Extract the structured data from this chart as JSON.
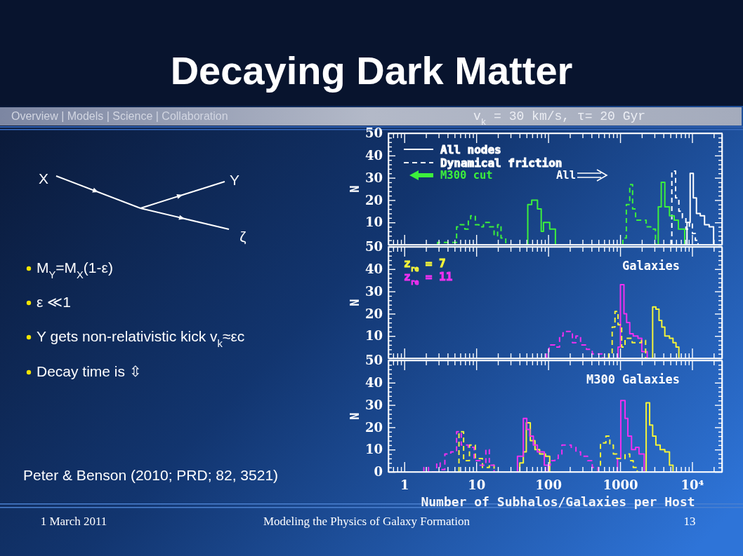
{
  "chart_data": [
    {
      "type": "other",
      "title": "Decaying Dark Matter",
      "annotations": [
        "Overview | Models | Science | Collaboration",
        "X",
        "Y",
        "ζ",
        "M$_{Y}$=M$_{X}$(1-ε)",
        "ε ≪1",
        "Y gets non-relativistic kick v$_{k}$≈εc",
        "Decay time is ⇳",
        "Peter & Benson (2010; PRD; 82, 3521)",
        "1 March 2011",
        "Modeling the Physics of Galaxy Formation",
        "13"
      ]
    },
    {
      "type": "step",
      "title": "v$_{k}$ = 30 km/s, τ= 20 Gyr",
      "ylabel": "N",
      "log": "x",
      "tick_labels": "y",
      "legend": "top left",
      "xlim": [
        0.6,
        26000
      ],
      "xticks": [
        {
          "value": 0.7,
          "label": null
        },
        {
          "value": 0.8,
          "label": null
        },
        {
          "value": 0.9,
          "label": null
        },
        1,
        {
          "value": 2,
          "label": null
        },
        {
          "value": 3,
          "label": null
        },
        {
          "value": 4,
          "label": null
        },
        {
          "value": 5,
          "label": null
        },
        {
          "value": 6,
          "label": null
        },
        {
          "value": 7,
          "label": null
        },
        {
          "value": 8,
          "label": null
        },
        {
          "value": 9,
          "label": null
        },
        10,
        {
          "value": 20,
          "label": null
        },
        {
          "value": 30,
          "label": null
        },
        {
          "value": 40,
          "label": null
        },
        {
          "value": 50,
          "label": null
        },
        {
          "value": 60,
          "label": null
        },
        {
          "value": 70,
          "label": null
        },
        {
          "value": 80,
          "label": null
        },
        {
          "value": 90,
          "label": null
        },
        100,
        {
          "value": 200,
          "label": null
        },
        {
          "value": 300,
          "label": null
        },
        {
          "value": 400,
          "label": null
        },
        {
          "value": 500,
          "label": null
        },
        {
          "value": 600,
          "label": null
        },
        {
          "value": 700,
          "label": null
        },
        {
          "value": 800,
          "label": null
        },
        {
          "value": 900,
          "label": null
        },
        1000,
        {
          "value": 2000,
          "label": null
        },
        {
          "value": 3000,
          "label": null
        },
        {
          "value": 4000,
          "label": null
        },
        {
          "value": 5000,
          "label": null
        },
        {
          "value": 6000,
          "label": null
        },
        {
          "value": 7000,
          "label": null
        },
        {
          "value": 8000,
          "label": null
        },
        {
          "value": 9000,
          "label": null
        },
        10000,
        {
          "value": 20000,
          "label": null
        }
      ],
      "ylim": [
        0,
        50
      ],
      "yticks": [
        {
          "value": 0,
          "label": null
        },
        {
          "value": 2,
          "label": null
        },
        {
          "value": 4,
          "label": null
        },
        {
          "value": 6,
          "label": null
        },
        {
          "value": 8,
          "label": null
        },
        10,
        {
          "value": 12,
          "label": null
        },
        {
          "value": 14,
          "label": null
        },
        {
          "value": 16,
          "label": null
        },
        {
          "value": 18,
          "label": null
        },
        20,
        {
          "value": 22,
          "label": null
        },
        {
          "value": 24,
          "label": null
        },
        {
          "value": 26,
          "label": null
        },
        {
          "value": 28,
          "label": null
        },
        30,
        {
          "value": 32,
          "label": null
        },
        {
          "value": 34,
          "label": null
        },
        {
          "value": 36,
          "label": null
        },
        {
          "value": 38,
          "label": null
        },
        40,
        {
          "value": 42,
          "label": null
        },
        {
          "value": 44,
          "label": null
        },
        {
          "value": 46,
          "label": null
        },
        {
          "value": 48,
          "label": null
        },
        50
      ],
      "annotations": [
        "M300 cut",
        "All"
      ],
      "series": [
        {
          "name": "All nodes",
          "color": "#ffffff",
          "line_style": "solid",
          "x": [
            8500,
            8500,
            9400,
            10400,
            11500,
            13000,
            14900,
            17300,
            19900
          ],
          "values": [
            0,
            10,
            32,
            21,
            14,
            13,
            9,
            8,
            0
          ]
        },
        {
          "name": "Dynamical friction",
          "color": "#ffffff",
          "line_style": "dashed",
          "x": [
            5230,
            5230,
            5900,
            6550,
            7330,
            8200,
            9180,
            10100,
            11100,
            12100
          ],
          "values": [
            0,
            33,
            21,
            15,
            12,
            7,
            10,
            5,
            2,
            0
          ]
        },
        {
          "color": "#3cf03c",
          "line_style": "solid",
          "x": [
            52,
            52,
            59,
            71,
            80,
            86,
            105,
            126
          ],
          "values": [
            0,
            18,
            20,
            16,
            6,
            10,
            7,
            0
          ]
        },
        {
          "color": "#3cf03c",
          "line_style": "solid",
          "x": [
            3390,
            3390,
            3730,
            4180,
            4850,
            5640,
            6450,
            7900
          ],
          "values": [
            0,
            17,
            28,
            17,
            13,
            11,
            7,
            0
          ]
        },
        {
          "color": "#3cf03c",
          "line_style": "dashed",
          "x": [
            2.9,
            2.9,
            3.9,
            5.33,
            5.97,
            6.93,
            7.76,
            8.36,
            9.71,
            10.9,
            12.6,
            15.2,
            17.7,
            19.8,
            22.1,
            25.7
          ],
          "values": [
            0,
            1,
            1,
            8,
            9,
            7,
            11,
            13,
            9,
            8,
            10,
            8,
            4,
            9,
            3,
            0
          ]
        },
        {
          "color": "#3cf03c",
          "line_style": "dashed",
          "x": [
            1090,
            1090,
            1220,
            1360,
            1490,
            1640,
            1980,
            2300,
            2670,
            3100
          ],
          "values": [
            0,
            3,
            18,
            27,
            16,
            11,
            11,
            8,
            7,
            0
          ]
        }
      ]
    },
    {
      "type": "step",
      "title": "Galaxies",
      "ylabel": "N",
      "log": "x",
      "tick_labels": "y",
      "legend": "top left",
      "xlim": [
        0.6,
        26000
      ],
      "xticks": [
        {
          "value": 0.7,
          "label": null
        },
        {
          "value": 0.8,
          "label": null
        },
        {
          "value": 0.9,
          "label": null
        },
        1,
        {
          "value": 2,
          "label": null
        },
        {
          "value": 3,
          "label": null
        },
        {
          "value": 4,
          "label": null
        },
        {
          "value": 5,
          "label": null
        },
        {
          "value": 6,
          "label": null
        },
        {
          "value": 7,
          "label": null
        },
        {
          "value": 8,
          "label": null
        },
        {
          "value": 9,
          "label": null
        },
        10,
        {
          "value": 20,
          "label": null
        },
        {
          "value": 30,
          "label": null
        },
        {
          "value": 40,
          "label": null
        },
        {
          "value": 50,
          "label": null
        },
        {
          "value": 60,
          "label": null
        },
        {
          "value": 70,
          "label": null
        },
        {
          "value": 80,
          "label": null
        },
        {
          "value": 90,
          "label": null
        },
        100,
        {
          "value": 200,
          "label": null
        },
        {
          "value": 300,
          "label": null
        },
        {
          "value": 400,
          "label": null
        },
        {
          "value": 500,
          "label": null
        },
        {
          "value": 600,
          "label": null
        },
        {
          "value": 700,
          "label": null
        },
        {
          "value": 800,
          "label": null
        },
        {
          "value": 900,
          "label": null
        },
        1000,
        {
          "value": 2000,
          "label": null
        },
        {
          "value": 3000,
          "label": null
        },
        {
          "value": 4000,
          "label": null
        },
        {
          "value": 5000,
          "label": null
        },
        {
          "value": 6000,
          "label": null
        },
        {
          "value": 7000,
          "label": null
        },
        {
          "value": 8000,
          "label": null
        },
        {
          "value": 9000,
          "label": null
        },
        10000,
        {
          "value": 20000,
          "label": null
        }
      ],
      "ylim": [
        0,
        50
      ],
      "yticks": [
        {
          "value": 0,
          "label": null
        },
        {
          "value": 2,
          "label": null
        },
        {
          "value": 4,
          "label": null
        },
        {
          "value": 6,
          "label": null
        },
        {
          "value": 8,
          "label": null
        },
        10,
        {
          "value": 12,
          "label": null
        },
        {
          "value": 14,
          "label": null
        },
        {
          "value": 16,
          "label": null
        },
        {
          "value": 18,
          "label": null
        },
        20,
        {
          "value": 22,
          "label": null
        },
        {
          "value": 24,
          "label": null
        },
        {
          "value": 26,
          "label": null
        },
        {
          "value": 28,
          "label": null
        },
        30,
        {
          "value": 32,
          "label": null
        },
        {
          "value": 34,
          "label": null
        },
        {
          "value": 36,
          "label": null
        },
        {
          "value": 38,
          "label": null
        },
        40,
        {
          "value": 42,
          "label": null
        },
        {
          "value": 44,
          "label": null
        },
        {
          "value": 46,
          "label": null
        },
        {
          "value": 48,
          "label": null
        },
        50
      ],
      "series": [
        {
          "name": "z$_{re}$ = 7",
          "color": "#f4f43a",
          "line_style": "solid",
          "x": [
            2830,
            2830,
            3140,
            3470,
            3790,
            4180,
            4850,
            5430,
            5980,
            6550
          ],
          "values": [
            0,
            23,
            22,
            17,
            14,
            10,
            9,
            7,
            5,
            0
          ]
        },
        {
          "name": "z$_{re}$ = 11",
          "color": "#f030f0",
          "line_style": "solid",
          "x": [
            935,
            935,
            1010,
            1130,
            1230,
            1360,
            1520,
            1770,
            2000,
            2380
          ],
          "values": [
            0,
            5,
            33,
            20,
            16,
            11,
            10,
            9,
            3,
            0
          ]
        },
        {
          "color": "#f4f43a",
          "line_style": "dashed",
          "x": [
            693,
            693,
            775,
            848,
            935,
            1050,
            1170,
            1470,
            1980,
            2260
          ],
          "values": [
            0,
            2,
            14,
            21,
            15,
            5,
            9,
            7,
            8,
            0
          ]
        },
        {
          "color": "#f030f0",
          "line_style": "dashed",
          "x": [
            95,
            95,
            103,
            124,
            144,
            161,
            217,
            243,
            282,
            340,
            410,
            574
          ],
          "values": [
            0,
            3,
            6,
            5,
            10,
            12,
            7,
            10,
            6,
            4,
            2,
            0
          ]
        }
      ]
    },
    {
      "type": "step",
      "title": "M300 Galaxies",
      "xlabel": "Number of Subhalos/Galaxies per Host",
      "ylabel": "N",
      "log": "x",
      "xlim": [
        0.6,
        26000
      ],
      "xticks": [
        {
          "value": 0.7,
          "label": null
        },
        {
          "value": 0.8,
          "label": null
        },
        {
          "value": 0.9,
          "label": null
        },
        1,
        {
          "value": 2,
          "label": null
        },
        {
          "value": 3,
          "label": null
        },
        {
          "value": 4,
          "label": null
        },
        {
          "value": 5,
          "label": null
        },
        {
          "value": 6,
          "label": null
        },
        {
          "value": 7,
          "label": null
        },
        {
          "value": 8,
          "label": null
        },
        {
          "value": 9,
          "label": null
        },
        10,
        {
          "value": 20,
          "label": null
        },
        {
          "value": 30,
          "label": null
        },
        {
          "value": 40,
          "label": null
        },
        {
          "value": 50,
          "label": null
        },
        {
          "value": 60,
          "label": null
        },
        {
          "value": 70,
          "label": null
        },
        {
          "value": 80,
          "label": null
        },
        {
          "value": 90,
          "label": null
        },
        100,
        {
          "value": 200,
          "label": null
        },
        {
          "value": 300,
          "label": null
        },
        {
          "value": 400,
          "label": null
        },
        {
          "value": 500,
          "label": null
        },
        {
          "value": 600,
          "label": null
        },
        {
          "value": 700,
          "label": null
        },
        {
          "value": 800,
          "label": null
        },
        {
          "value": 900,
          "label": null
        },
        1000,
        {
          "value": 2000,
          "label": null
        },
        {
          "value": 3000,
          "label": null
        },
        {
          "value": 4000,
          "label": null
        },
        {
          "value": 5000,
          "label": null
        },
        {
          "value": 6000,
          "label": null
        },
        {
          "value": 7000,
          "label": null
        },
        {
          "value": 8000,
          "label": null
        },
        {
          "value": 9000,
          "label": null
        },
        {
          "value": 10000,
          "label": "10⁴"
        },
        {
          "value": 20000,
          "label": null
        }
      ],
      "ylim": [
        0,
        50
      ],
      "yticks": [
        0,
        {
          "value": 2,
          "label": null
        },
        {
          "value": 4,
          "label": null
        },
        {
          "value": 6,
          "label": null
        },
        {
          "value": 8,
          "label": null
        },
        10,
        {
          "value": 12,
          "label": null
        },
        {
          "value": 14,
          "label": null
        },
        {
          "value": 16,
          "label": null
        },
        {
          "value": 18,
          "label": null
        },
        20,
        {
          "value": 22,
          "label": null
        },
        {
          "value": 24,
          "label": null
        },
        {
          "value": 26,
          "label": null
        },
        {
          "value": 28,
          "label": null
        },
        30,
        {
          "value": 32,
          "label": null
        },
        {
          "value": 34,
          "label": null
        },
        {
          "value": 36,
          "label": null
        },
        {
          "value": 38,
          "label": null
        },
        40,
        {
          "value": 42,
          "label": null
        },
        {
          "value": 44,
          "label": null
        },
        {
          "value": 46,
          "label": null
        },
        {
          "value": 48,
          "label": null
        },
        50
      ],
      "series": [
        {
          "color": "#f4f43a",
          "line_style": "solid",
          "x": [
            2300,
            2300,
            2570,
            2830,
            3140,
            3600,
            4180,
            4850,
            5430
          ],
          "values": [
            0,
            31,
            21,
            16,
            12,
            10,
            9,
            3,
            0
          ]
        },
        {
          "color": "#f4f43a",
          "line_style": "solid",
          "x": [
            40.3,
            40.3,
            45.1,
            49.6,
            56.4,
            65.5,
            76,
            91.8,
            105
          ],
          "values": [
            0,
            4,
            9,
            22,
            14,
            10,
            8,
            7,
            0
          ]
        },
        {
          "color": "#f030f0",
          "line_style": "solid",
          "x": [
            920,
            920,
            1020,
            1170,
            1280,
            1440,
            1640,
            1830,
            2160
          ],
          "values": [
            0,
            6,
            32,
            24,
            16,
            10,
            11,
            8,
            0
          ]
        },
        {
          "color": "#f030f0",
          "line_style": "solid",
          "x": [
            37.4,
            37.4,
            45.1,
            50.4,
            55.5,
            62.2,
            70.7,
            88.3,
            100
          ],
          "values": [
            0,
            7,
            24,
            19,
            16,
            12,
            9,
            3,
            0
          ]
        },
        {
          "color": "#f4f43a",
          "line_style": "dashed",
          "x": [
            495,
            495,
            533,
            634,
            719,
            805,
            900,
            1170,
            1360,
            1520,
            1730
          ],
          "values": [
            0,
            3,
            13,
            16,
            12,
            8,
            6,
            8,
            5,
            2,
            0
          ]
        },
        {
          "color": "#f4f43a",
          "line_style": "dashed",
          "x": [
            5.75,
            5.75,
            6.67,
            8.05,
            9.7,
            12.2,
            15.2,
            17.7
          ],
          "values": [
            0,
            18,
            5,
            12,
            6,
            2,
            3,
            0
          ]
        },
        {
          "color": "#f030f0",
          "line_style": "dashed",
          "x": [
            91.8,
            91.8,
            107,
            124,
            138,
            155,
            209,
            243,
            282,
            353,
            410,
            495
          ],
          "values": [
            0,
            3,
            5,
            6,
            8,
            12,
            11,
            9,
            7,
            5,
            2,
            0
          ]
        },
        {
          "color": "#f030f0",
          "line_style": "dashed",
          "x": [
            1.87,
            1.87,
            2.17,
            2.82,
            3.15,
            3.66,
            4.42,
            5.33,
            6.19,
            7.75,
            9.33,
            11.3,
            13.6,
            15.2,
            17.7
          ],
          "values": [
            0,
            2,
            0,
            4,
            1,
            8,
            9,
            18,
            12,
            11,
            5,
            3,
            10,
            3,
            0
          ]
        }
      ]
    }
  ]
}
